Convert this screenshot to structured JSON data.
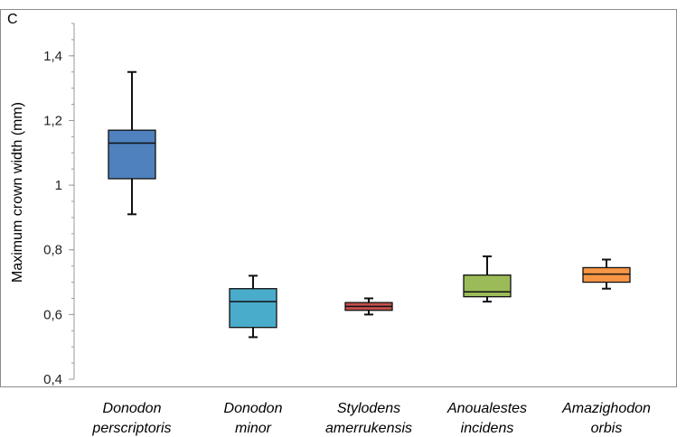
{
  "panel_label": "C",
  "chart_data": {
    "type": "box",
    "ylabel": "Maximum crown width (mm)",
    "xlabel": "",
    "ylim": [
      0.4,
      1.5
    ],
    "yticks": [
      0.4,
      0.6,
      0.8,
      1.0,
      1.2,
      1.4
    ],
    "ytick_labels": [
      "0,4",
      "0,6",
      "0,8",
      "1",
      "1,2",
      "1,4"
    ],
    "grid": false,
    "categories": [
      {
        "line1": "Donodon",
        "line2": "perscriptoris"
      },
      {
        "line1": "Donodon",
        "line2": "minor"
      },
      {
        "line1": "Stylodens",
        "line2": "amerrukensis"
      },
      {
        "line1": "Anoualestes",
        "line2": "incidens"
      },
      {
        "line1": "Amazighodon",
        "line2": "orbis"
      }
    ],
    "boxes": [
      {
        "min": 0.91,
        "q1": 1.02,
        "median": 1.13,
        "q3": 1.17,
        "max": 1.35,
        "color": "#4e81bd"
      },
      {
        "min": 0.53,
        "q1": 0.56,
        "median": 0.64,
        "q3": 0.68,
        "max": 0.72,
        "color": "#4aaccb"
      },
      {
        "min": 0.6,
        "q1": 0.613,
        "median": 0.625,
        "q3": 0.637,
        "max": 0.65,
        "color": "#c0504d"
      },
      {
        "min": 0.64,
        "q1": 0.655,
        "median": 0.67,
        "q3": 0.722,
        "max": 0.78,
        "color": "#9bbb59"
      },
      {
        "min": 0.68,
        "q1": 0.7,
        "median": 0.725,
        "q3": 0.745,
        "max": 0.77,
        "color": "#f79646"
      }
    ]
  }
}
